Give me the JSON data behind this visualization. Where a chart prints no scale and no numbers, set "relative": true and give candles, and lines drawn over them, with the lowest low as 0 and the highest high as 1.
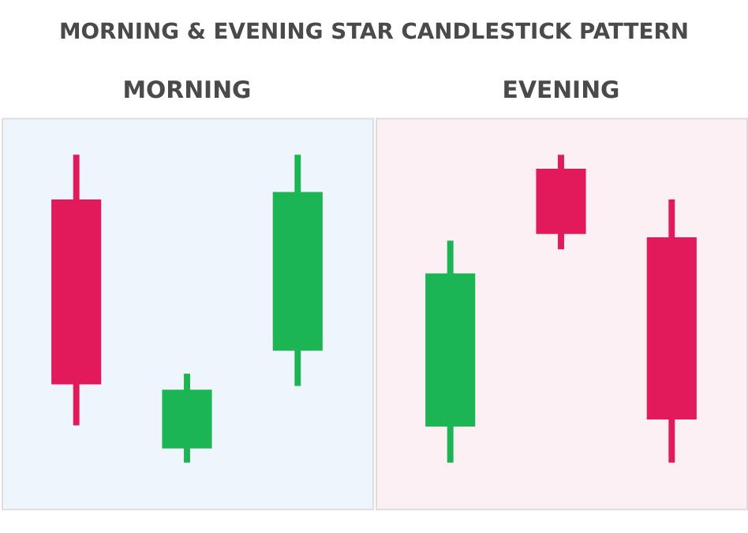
{
  "chart_data": [
    {
      "type": "candlestick",
      "title": "MORNING & EVENING STAR CANDLESTICK PATTERN",
      "subtitle": "MORNING",
      "relative": true,
      "categories": [
        null,
        null,
        null
      ],
      "ohlc": [
        [
          0.855,
          1,
          0.121,
          0.254
        ],
        [
          0.046,
          0.289,
          0,
          0.237
        ],
        [
          0.364,
          1,
          0.249,
          0.879
        ]
      ],
      "colors": [
        "#e2195b",
        "#1cb553",
        "#1cb553"
      ]
    },
    {
      "type": "candlestick",
      "title": "EVENING",
      "relative": true,
      "categories": [
        null,
        null,
        null
      ],
      "ohlc": [
        [
          0.117,
          0.721,
          0,
          0.615
        ],
        [
          0.955,
          1,
          0.693,
          0.743
        ],
        [
          0.732,
          0.855,
          0,
          0.14
        ]
      ],
      "colors": [
        "#1cb553",
        "#e2195b",
        "#e2195b"
      ]
    }
  ]
}
